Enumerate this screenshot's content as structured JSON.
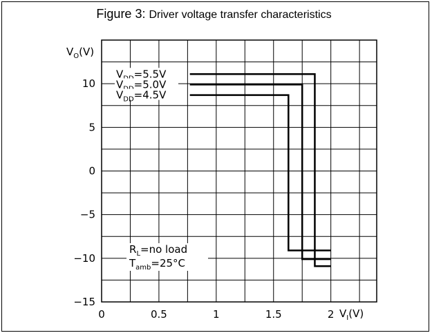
{
  "figure": {
    "title_prefix": "Figure 3:",
    "title_text": "Driver voltage transfer characteristics"
  },
  "chart_data": {
    "type": "line",
    "title": "Figure 3: Driver voltage transfer characteristics",
    "xlabel": {
      "main": "V",
      "sub": "I",
      "unit": "(V)"
    },
    "ylabel": {
      "main": "V",
      "sub": "O",
      "unit": "(V)"
    },
    "xlim": [
      0,
      2.4
    ],
    "ylim": [
      -15,
      15
    ],
    "x_ticks": [
      {
        "value": 0,
        "label": "0"
      },
      {
        "value": 0.5,
        "label": "0.5"
      },
      {
        "value": 1,
        "label": "1"
      },
      {
        "value": 1.5,
        "label": "1.5"
      },
      {
        "value": 2,
        "label": "2"
      }
    ],
    "y_ticks": [
      {
        "value": 10,
        "label": "10"
      },
      {
        "value": 5,
        "label": "5"
      },
      {
        "value": 0,
        "label": "0"
      },
      {
        "value": -5,
        "label": "−5"
      },
      {
        "value": -10,
        "label": "−10"
      },
      {
        "value": -15,
        "label": "−15"
      }
    ],
    "grid": true,
    "series": [
      {
        "name_main": "V",
        "name_sub": "DD",
        "name_val": "=5.5V",
        "x": [
          0.77,
          1.86,
          1.86,
          2.0
        ],
        "y": [
          11.1,
          11.1,
          -10.9,
          -10.9
        ]
      },
      {
        "name_main": "V",
        "name_sub": "DD",
        "name_val": "=5.0V",
        "x": [
          0.77,
          1.75,
          1.75,
          2.0
        ],
        "y": [
          9.9,
          9.9,
          -10.1,
          -10.1
        ]
      },
      {
        "name_main": "V",
        "name_sub": "DD",
        "name_val": "=4.5V",
        "x": [
          0.77,
          1.63,
          1.63,
          2.0
        ],
        "y": [
          8.7,
          8.7,
          -9.1,
          -9.1
        ]
      }
    ],
    "annotations": {
      "rl_main": "R",
      "rl_sub": "L",
      "rl_val": "=no load",
      "t_main": "T",
      "t_sub": "amb",
      "t_val": "=25°C"
    }
  }
}
